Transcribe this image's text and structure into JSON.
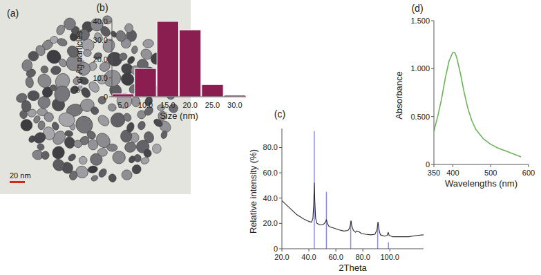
{
  "image": {
    "label": "(a)",
    "scale_bar": "20 nm"
  },
  "chart_data": [
    {
      "type": "bar",
      "title": "(b)",
      "categories": [
        "5.0",
        "10.0",
        "15.0",
        "20.0",
        "25.0",
        "30.0"
      ],
      "values": [
        1.5,
        15,
        40,
        35.5,
        6.5,
        0.8
      ],
      "color": "#8b1e50",
      "x_label": "Size (nm)",
      "y_label": "% of Ag particles",
      "ylim": [
        0,
        40
      ],
      "yticks": [
        0,
        {
          "value": 10,
          "label": "10.0"
        },
        {
          "value": 20,
          "label": "20.0"
        },
        {
          "value": 30,
          "label": "30.0"
        },
        {
          "value": 40,
          "label": "40.0"
        }
      ]
    },
    {
      "type": "line",
      "title": "(c)",
      "x_label": "2Theta",
      "y_label": "Relative intensity (%)",
      "xlim": [
        20,
        125
      ],
      "ylim": [
        0,
        95
      ],
      "xticks": [
        {
          "value": 20,
          "label": "20.0"
        },
        {
          "value": 40,
          "label": "40.0"
        },
        {
          "value": 60,
          "label": "60.0"
        },
        {
          "value": 80,
          "label": "80.0"
        },
        {
          "value": 100,
          "label": "100.0"
        }
      ],
      "yticks": [
        0,
        {
          "value": 20,
          "label": "20.0"
        },
        {
          "value": 40,
          "label": "40.0"
        },
        {
          "value": 60,
          "label": "60.0"
        },
        {
          "value": 80,
          "label": "80.0"
        }
      ],
      "series": [
        {
          "type": "line",
          "color": "#2b2b2b",
          "x": [
            20,
            22,
            25,
            28,
            31,
            34,
            37,
            40,
            42,
            43,
            43.6,
            44,
            44.4,
            45,
            46,
            48,
            50,
            51,
            52.3,
            53,
            53.7,
            55,
            58,
            62,
            66,
            69,
            70,
            70.8,
            71.3,
            71.8,
            73,
            74.5,
            75.5,
            77,
            79,
            82,
            86,
            89,
            90.5,
            91.3,
            92,
            93,
            96,
            98,
            98.8,
            99.5,
            102,
            108,
            114,
            120,
            125
          ],
          "values": [
            38,
            36,
            33,
            30,
            27,
            25,
            23,
            21.5,
            21,
            24,
            35,
            52,
            38,
            24,
            20,
            19,
            19,
            19.5,
            21,
            23,
            20,
            17.5,
            16.5,
            15,
            14,
            14.5,
            16,
            19,
            22,
            18,
            14.5,
            13,
            14,
            13.5,
            12,
            11.5,
            11,
            11.5,
            15,
            21,
            15,
            11,
            10,
            10.5,
            13,
            10.5,
            9.5,
            9.5,
            9.5,
            10.5,
            11
          ]
        },
        {
          "type": "stem",
          "color": "#8c8cd8",
          "x": [
            44,
            53,
            71,
            91,
            99
          ],
          "values": [
            93,
            45,
            22,
            21,
            5
          ]
        }
      ]
    },
    {
      "type": "line",
      "title": "(d)",
      "x_label": "Wavelengths (nm)",
      "y_label": "Absorbance",
      "xlim": [
        350,
        600
      ],
      "ylim": [
        0,
        1.5
      ],
      "xticks": [
        350,
        400,
        500,
        600
      ],
      "yticks": [
        0,
        {
          "value": 0.5,
          "label": "0.500"
        },
        {
          "value": 1,
          "label": "1.000"
        },
        {
          "value": 1.5,
          "label": "1.500"
        }
      ],
      "color": "#6db35a",
      "x": [
        350,
        360,
        370,
        380,
        390,
        400,
        405,
        410,
        420,
        430,
        440,
        450,
        460,
        480,
        500,
        520,
        540,
        560,
        580
      ],
      "values": [
        0.35,
        0.5,
        0.68,
        0.9,
        1.08,
        1.17,
        1.17,
        1.12,
        0.95,
        0.75,
        0.58,
        0.46,
        0.37,
        0.27,
        0.21,
        0.17,
        0.14,
        0.11,
        0.08
      ]
    }
  ]
}
